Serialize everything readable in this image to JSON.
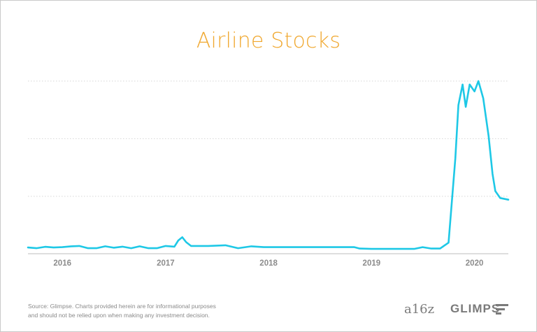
{
  "chart_data": {
    "type": "line",
    "title": "Airline Stocks",
    "xlabel": "",
    "ylabel": "",
    "x_tick_labels": [
      "2016",
      "2017",
      "2018",
      "2019",
      "2020"
    ],
    "x_range": [
      "2015-09-01",
      "2020-04-30"
    ],
    "ylim": [
      0,
      100
    ],
    "grid": "horizontal dotted",
    "line_color": "#1ec8e6",
    "series": [
      {
        "points": [
          [
            "2015-09-01",
            3.2
          ],
          [
            "2015-10-01",
            2.8
          ],
          [
            "2015-11-01",
            3.6
          ],
          [
            "2015-12-01",
            3.2
          ],
          [
            "2016-01-01",
            3.4
          ],
          [
            "2016-02-01",
            3.9
          ],
          [
            "2016-03-01",
            4.1
          ],
          [
            "2016-04-01",
            2.8
          ],
          [
            "2016-05-01",
            2.8
          ],
          [
            "2016-06-01",
            3.9
          ],
          [
            "2016-07-01",
            3.1
          ],
          [
            "2016-08-01",
            3.7
          ],
          [
            "2016-09-01",
            2.8
          ],
          [
            "2016-10-01",
            3.9
          ],
          [
            "2016-11-01",
            2.8
          ],
          [
            "2016-12-01",
            2.8
          ],
          [
            "2017-01-01",
            4.1
          ],
          [
            "2017-02-01",
            3.7
          ],
          [
            "2017-02-15",
            7.3
          ],
          [
            "2017-03-01",
            9.2
          ],
          [
            "2017-03-15",
            6.3
          ],
          [
            "2017-04-01",
            4.1
          ],
          [
            "2017-06-01",
            4.1
          ],
          [
            "2017-08-01",
            4.5
          ],
          [
            "2017-09-15",
            2.8
          ],
          [
            "2017-11-01",
            3.9
          ],
          [
            "2017-12-15",
            3.4
          ],
          [
            "2018-01-01",
            3.4
          ],
          [
            "2018-04-01",
            3.4
          ],
          [
            "2018-08-01",
            3.4
          ],
          [
            "2018-11-01",
            3.4
          ],
          [
            "2018-11-20",
            2.6
          ],
          [
            "2019-01-01",
            2.4
          ],
          [
            "2019-06-01",
            2.4
          ],
          [
            "2019-07-01",
            3.4
          ],
          [
            "2019-08-01",
            2.6
          ],
          [
            "2019-09-01",
            2.6
          ],
          [
            "2019-10-01",
            6.0
          ],
          [
            "2019-10-25",
            55.0
          ],
          [
            "2019-11-05",
            86.0
          ],
          [
            "2019-11-20",
            98.0
          ],
          [
            "2019-12-01",
            85.0
          ],
          [
            "2019-12-15",
            98.0
          ],
          [
            "2020-01-01",
            94.0
          ],
          [
            "2020-01-15",
            100.0
          ],
          [
            "2020-02-01",
            90.0
          ],
          [
            "2020-02-20",
            68.0
          ],
          [
            "2020-03-05",
            46.0
          ],
          [
            "2020-03-15",
            36.0
          ],
          [
            "2020-04-01",
            32.0
          ],
          [
            "2020-04-30",
            31.0
          ]
        ]
      }
    ]
  },
  "footer": {
    "source_line1": "Source: Glimpse. Charts provided herein are for informational purposes",
    "source_line2": "and should not be relied upon when making any investment decision.",
    "logo_a16z": "a16z",
    "logo_glimpse": "GLIMPS"
  }
}
